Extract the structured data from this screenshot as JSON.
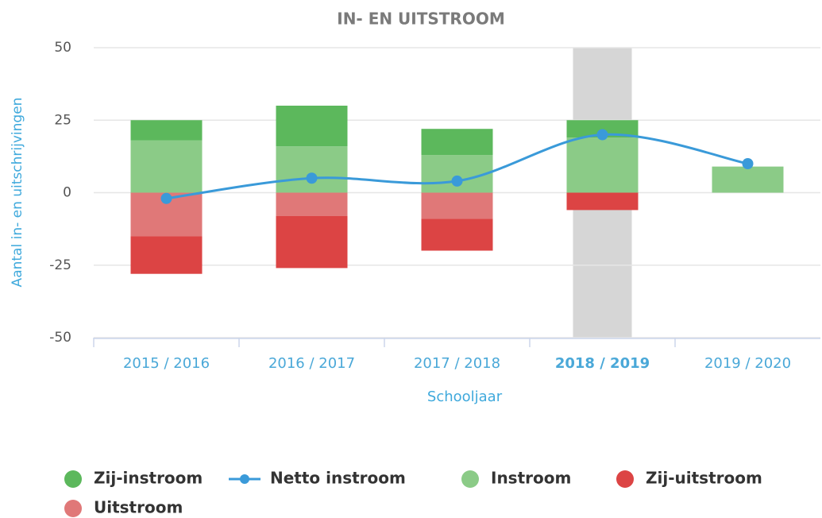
{
  "chart_data": {
    "type": "bar",
    "title": "IN- EN UITSTROOM",
    "y_label": "Aantal in- en uitschrijvingen",
    "x_label": "Schooljaar",
    "categories": [
      "2015 / 2016",
      "2016 / 2017",
      "2017 / 2018",
      "2018 / 2019",
      "2019 / 2020"
    ],
    "highlight_index": 3,
    "ylim": [
      -50,
      50
    ],
    "yticks": [
      -50,
      -25,
      0,
      25,
      50
    ],
    "grid": true,
    "series": [
      {
        "name": "Zij-instroom",
        "type": "bar",
        "color": "#5cb85c",
        "values": [
          7,
          14,
          9,
          6,
          0
        ]
      },
      {
        "name": "Netto instroom",
        "type": "line",
        "color": "#3a9ad9",
        "values": [
          -2,
          5,
          4,
          20,
          10
        ]
      },
      {
        "name": "Instroom",
        "type": "bar",
        "color": "#8bcb87",
        "values": [
          18,
          16,
          13,
          19,
          9
        ]
      },
      {
        "name": "Zij-uitstroom",
        "type": "bar",
        "color": "#dc4444",
        "values": [
          -13,
          -18,
          -11,
          -6,
          0
        ]
      },
      {
        "name": "Uitstroom",
        "type": "bar",
        "color": "#e07878",
        "values": [
          -15,
          -8,
          -9,
          0,
          0
        ]
      }
    ]
  }
}
